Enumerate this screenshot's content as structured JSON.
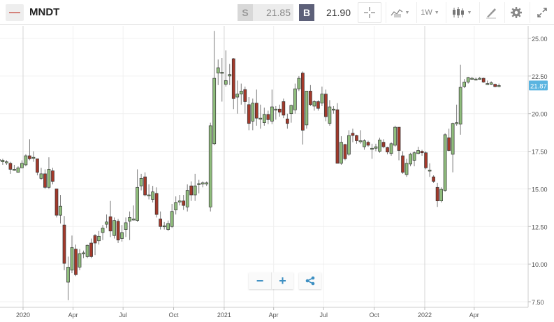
{
  "header": {
    "symbol": "MNDT",
    "sell_label": "S",
    "sell_price": "21.85",
    "buy_label": "B",
    "buy_price": "21.90",
    "timeframe": "1W",
    "icons": [
      "crosshair-icon",
      "line-chart-icon",
      "candlestick-icon",
      "draw-icon",
      "gear-icon",
      "expand-icon"
    ]
  },
  "controls": {
    "zoom_out": "−",
    "zoom_in": "+",
    "share_icon": "share-icon"
  },
  "colors": {
    "up": "#8fbd7c",
    "down": "#a3392b",
    "price_badge": "#5ab4e0",
    "sell_box": "#d8d8d8",
    "buy_box": "#5d6079"
  },
  "chart_data": {
    "type": "candlestick",
    "interval": "1W",
    "ylim": [
      7.5,
      25.0
    ],
    "yticks": [
      "25.00",
      "22.50",
      "20.00",
      "17.50",
      "15.00",
      "12.50",
      "10.00",
      "7.50"
    ],
    "xticks": [
      {
        "date": "2020-01-01",
        "label": "2020"
      },
      {
        "date": "2020-04-01",
        "label": "Apr"
      },
      {
        "date": "2020-07-01",
        "label": "Jul"
      },
      {
        "date": "2020-10-01",
        "label": "Oct"
      },
      {
        "date": "2021-01-01",
        "label": "2021"
      },
      {
        "date": "2021-04-01",
        "label": "Apr"
      },
      {
        "date": "2021-07-01",
        "label": "Jul"
      },
      {
        "date": "2021-10-01",
        "label": "Oct"
      },
      {
        "date": "2022-01-01",
        "label": "2022"
      },
      {
        "date": "2022-04-01",
        "label": "Apr"
      }
    ],
    "last_price": "21.87",
    "grid": true,
    "columns": [
      "date",
      "open",
      "high",
      "low",
      "close"
    ],
    "candles": [
      [
        "2019-11-18",
        16.9,
        17.1,
        16.7,
        16.95
      ],
      [
        "2019-11-25",
        16.8,
        17.0,
        16.6,
        16.9
      ],
      [
        "2019-12-02",
        16.8,
        16.9,
        16.6,
        16.8
      ],
      [
        "2019-12-09",
        16.7,
        16.8,
        16.0,
        16.3
      ],
      [
        "2019-12-16",
        16.3,
        16.6,
        16.2,
        16.3
      ],
      [
        "2019-12-23",
        16.1,
        16.5,
        16.1,
        16.4
      ],
      [
        "2019-12-30",
        16.4,
        16.9,
        16.4,
        16.7
      ],
      [
        "2020-01-06",
        16.6,
        17.3,
        16.5,
        17.2
      ],
      [
        "2020-01-13",
        17.2,
        18.3,
        16.9,
        17.0
      ],
      [
        "2020-01-20",
        17.05,
        17.5,
        16.8,
        17.1
      ],
      [
        "2020-01-27",
        17.0,
        17.0,
        15.9,
        16.1
      ],
      [
        "2020-02-03",
        15.7,
        16.4,
        15.6,
        16.0
      ],
      [
        "2020-02-10",
        16.0,
        16.3,
        15.0,
        15.1
      ],
      [
        "2020-02-17",
        15.1,
        17.1,
        15.0,
        16.3
      ],
      [
        "2020-02-24",
        16.2,
        16.4,
        15.3,
        15.5
      ],
      [
        "2020-03-02",
        15.0,
        15.0,
        13.1,
        13.25
      ],
      [
        "2020-03-09",
        13.25,
        14.6,
        12.7,
        13.85
      ],
      [
        "2020-03-16",
        12.6,
        13.2,
        9.6,
        10.05
      ],
      [
        "2020-03-23",
        8.8,
        10.5,
        7.6,
        9.8
      ],
      [
        "2020-03-30",
        9.6,
        11.9,
        9.4,
        11.1
      ],
      [
        "2020-04-06",
        11.0,
        11.3,
        9.2,
        9.3
      ],
      [
        "2020-04-13",
        9.8,
        11.0,
        9.6,
        10.7
      ],
      [
        "2020-04-20",
        10.7,
        10.9,
        10.4,
        10.75
      ],
      [
        "2020-04-27",
        10.5,
        11.3,
        10.4,
        11.25
      ],
      [
        "2020-05-04",
        11.4,
        11.7,
        10.4,
        10.5
      ],
      [
        "2020-05-11",
        11.9,
        12.0,
        10.6,
        11.4
      ],
      [
        "2020-05-18",
        11.55,
        12.2,
        11.3,
        11.85
      ],
      [
        "2020-05-25",
        12.1,
        12.6,
        11.6,
        12.4
      ],
      [
        "2020-06-01",
        12.65,
        13.3,
        12.4,
        12.8
      ],
      [
        "2020-06-08",
        13.15,
        14.2,
        11.8,
        12.2
      ],
      [
        "2020-06-15",
        11.9,
        13.1,
        11.7,
        12.9
      ],
      [
        "2020-06-22",
        12.85,
        13.0,
        11.4,
        11.6
      ],
      [
        "2020-06-29",
        11.7,
        12.6,
        11.5,
        12.1
      ],
      [
        "2020-07-06",
        12.3,
        13.1,
        11.8,
        12.75
      ],
      [
        "2020-07-13",
        12.85,
        13.5,
        11.6,
        13.1
      ],
      [
        "2020-07-20",
        13.0,
        13.9,
        12.9,
        13.0
      ],
      [
        "2020-07-27",
        12.9,
        16.3,
        12.8,
        15.1
      ],
      [
        "2020-08-03",
        15.2,
        16.0,
        14.9,
        15.7
      ],
      [
        "2020-08-10",
        15.8,
        16.1,
        14.5,
        14.6
      ],
      [
        "2020-08-17",
        14.6,
        15.3,
        14.3,
        14.6
      ],
      [
        "2020-08-24",
        14.3,
        15.2,
        14.1,
        14.8
      ],
      [
        "2020-08-31",
        14.7,
        15.1,
        13.1,
        13.3
      ],
      [
        "2020-09-07",
        13.0,
        13.5,
        12.3,
        12.5
      ],
      [
        "2020-09-14",
        12.5,
        12.8,
        12.3,
        12.55
      ],
      [
        "2020-09-21",
        12.3,
        12.9,
        12.2,
        12.7
      ],
      [
        "2020-09-28",
        12.5,
        14.0,
        12.4,
        13.5
      ],
      [
        "2020-10-05",
        13.6,
        14.5,
        13.3,
        14.1
      ],
      [
        "2020-10-12",
        14.15,
        14.6,
        13.9,
        14.2
      ],
      [
        "2020-10-19",
        14.2,
        14.6,
        13.6,
        13.9
      ],
      [
        "2020-10-26",
        13.8,
        15.3,
        13.5,
        14.9
      ],
      [
        "2020-11-02",
        15.2,
        15.5,
        14.2,
        14.6
      ],
      [
        "2020-11-09",
        14.6,
        16.0,
        14.2,
        15.2
      ],
      [
        "2020-11-16",
        15.3,
        15.6,
        14.7,
        15.35
      ],
      [
        "2020-11-23",
        15.4,
        15.5,
        15.1,
        15.4
      ],
      [
        "2020-11-30",
        15.35,
        15.5,
        15.2,
        15.4
      ],
      [
        "2020-12-07",
        13.8,
        19.4,
        13.5,
        19.2
      ],
      [
        "2020-12-14",
        18.0,
        25.5,
        17.9,
        22.35
      ],
      [
        "2020-12-21",
        22.7,
        23.6,
        21.9,
        23.05
      ],
      [
        "2020-12-28",
        22.7,
        23.7,
        20.8,
        22.75
      ],
      [
        "2021-01-04",
        21.95,
        24.2,
        21.8,
        22.2
      ],
      [
        "2021-01-11",
        22.5,
        23.3,
        21.9,
        22.6
      ],
      [
        "2021-01-18",
        23.65,
        23.7,
        20.3,
        21.0
      ],
      [
        "2021-01-25",
        21.1,
        22.2,
        20.0,
        21.3
      ],
      [
        "2021-02-01",
        21.3,
        22.0,
        20.6,
        21.5
      ],
      [
        "2021-02-08",
        21.6,
        21.8,
        20.0,
        20.8
      ],
      [
        "2021-02-15",
        20.6,
        21.1,
        18.9,
        19.35
      ],
      [
        "2021-02-22",
        19.5,
        21.0,
        18.9,
        20.7
      ],
      [
        "2021-03-01",
        20.7,
        21.6,
        19.2,
        19.7
      ],
      [
        "2021-03-08",
        19.7,
        20.6,
        19.0,
        19.7
      ],
      [
        "2021-03-15",
        19.4,
        20.4,
        19.2,
        19.95
      ],
      [
        "2021-03-22",
        19.95,
        20.2,
        19.3,
        19.6
      ],
      [
        "2021-03-29",
        19.5,
        21.6,
        19.3,
        20.45
      ],
      [
        "2021-04-05",
        20.3,
        20.5,
        19.6,
        20.3
      ],
      [
        "2021-04-12",
        20.3,
        20.6,
        19.8,
        20.1
      ],
      [
        "2021-04-19",
        20.8,
        21.0,
        19.7,
        19.9
      ],
      [
        "2021-04-26",
        19.65,
        20.0,
        19.0,
        19.35
      ],
      [
        "2021-05-03",
        20.0,
        20.6,
        19.4,
        20.55
      ],
      [
        "2021-05-10",
        20.25,
        22.0,
        20.0,
        21.65
      ],
      [
        "2021-05-17",
        21.65,
        22.5,
        21.5,
        22.35
      ],
      [
        "2021-05-24",
        22.7,
        22.8,
        17.95,
        18.9
      ],
      [
        "2021-05-31",
        19.25,
        21.5,
        19.0,
        21.5
      ],
      [
        "2021-06-07",
        21.5,
        21.9,
        20.5,
        20.6
      ],
      [
        "2021-06-14",
        20.5,
        20.9,
        20.2,
        20.8
      ],
      [
        "2021-06-21",
        20.8,
        20.9,
        20.2,
        20.35
      ],
      [
        "2021-06-28",
        20.7,
        21.8,
        20.5,
        21.3
      ],
      [
        "2021-07-05",
        21.3,
        21.6,
        19.5,
        19.8
      ],
      [
        "2021-07-12",
        19.35,
        20.9,
        19.2,
        20.45
      ],
      [
        "2021-07-19",
        20.3,
        20.5,
        20.0,
        20.3
      ],
      [
        "2021-07-26",
        20.26,
        20.7,
        16.7,
        16.7
      ],
      [
        "2021-08-02",
        16.7,
        18.5,
        16.6,
        18.1
      ],
      [
        "2021-08-09",
        17.95,
        18.0,
        16.9,
        17.0
      ],
      [
        "2021-08-16",
        17.3,
        18.9,
        17.2,
        18.55
      ],
      [
        "2021-08-23",
        18.7,
        19.0,
        18.1,
        18.55
      ],
      [
        "2021-08-30",
        18.55,
        18.6,
        18.0,
        18.2
      ],
      [
        "2021-09-06",
        18.2,
        18.9,
        18.0,
        18.2
      ],
      [
        "2021-09-13",
        17.8,
        18.3,
        17.6,
        18.2
      ],
      [
        "2021-09-20",
        18.1,
        18.2,
        17.8,
        17.9
      ],
      [
        "2021-09-27",
        17.7,
        18.0,
        17.0,
        17.7
      ],
      [
        "2021-10-04",
        17.7,
        18.0,
        17.5,
        17.8
      ],
      [
        "2021-10-11",
        17.5,
        18.4,
        17.4,
        18.25
      ],
      [
        "2021-10-18",
        18.1,
        18.3,
        17.7,
        17.8
      ],
      [
        "2021-10-25",
        17.75,
        17.8,
        17.3,
        17.45
      ],
      [
        "2021-11-01",
        17.35,
        18.1,
        17.2,
        18.0
      ],
      [
        "2021-11-08",
        17.9,
        19.2,
        17.8,
        19.1
      ],
      [
        "2021-11-15",
        19.1,
        19.1,
        16.9,
        17.55
      ],
      [
        "2021-11-22",
        17.2,
        17.5,
        16.0,
        16.1
      ],
      [
        "2021-11-29",
        15.95,
        17.0,
        15.8,
        16.7
      ],
      [
        "2021-12-06",
        16.65,
        17.4,
        16.5,
        17.3
      ],
      [
        "2021-12-13",
        16.9,
        17.5,
        16.5,
        17.4
      ],
      [
        "2021-12-20",
        17.35,
        17.8,
        17.3,
        17.55
      ],
      [
        "2021-12-27",
        17.5,
        17.6,
        17.2,
        17.4
      ],
      [
        "2022-01-03",
        17.4,
        17.5,
        16.3,
        16.4
      ],
      [
        "2022-01-10",
        16.25,
        16.7,
        15.8,
        16.25
      ],
      [
        "2022-01-17",
        15.8,
        15.9,
        15.4,
        15.5
      ],
      [
        "2022-01-24",
        15.1,
        15.4,
        13.8,
        14.2
      ],
      [
        "2022-01-31",
        14.2,
        15.1,
        14.1,
        14.97
      ],
      [
        "2022-02-07",
        14.9,
        18.7,
        14.8,
        18.6
      ],
      [
        "2022-02-14",
        18.4,
        19.0,
        17.5,
        17.55
      ],
      [
        "2022-02-21",
        17.3,
        19.4,
        16.1,
        19.35
      ],
      [
        "2022-02-28",
        19.35,
        20.6,
        19.2,
        19.4
      ],
      [
        "2022-03-07",
        19.3,
        23.25,
        18.6,
        21.75
      ],
      [
        "2022-03-14",
        21.8,
        22.3,
        21.7,
        22.1
      ],
      [
        "2022-03-21",
        22.1,
        22.45,
        22.0,
        22.4
      ],
      [
        "2022-03-28",
        22.35,
        22.45,
        22.25,
        22.35
      ],
      [
        "2022-04-04",
        22.3,
        22.4,
        22.2,
        22.3
      ],
      [
        "2022-04-11",
        22.35,
        22.45,
        22.25,
        22.35
      ],
      [
        "2022-04-18",
        22.35,
        22.4,
        22.05,
        22.1
      ],
      [
        "2022-04-25",
        22.0,
        22.2,
        21.9,
        22.0
      ],
      [
        "2022-05-02",
        21.95,
        22.15,
        21.9,
        22.05
      ],
      [
        "2022-05-09",
        21.95,
        22.0,
        21.75,
        21.8
      ],
      [
        "2022-05-16",
        21.8,
        22.0,
        21.75,
        21.87
      ]
    ]
  }
}
